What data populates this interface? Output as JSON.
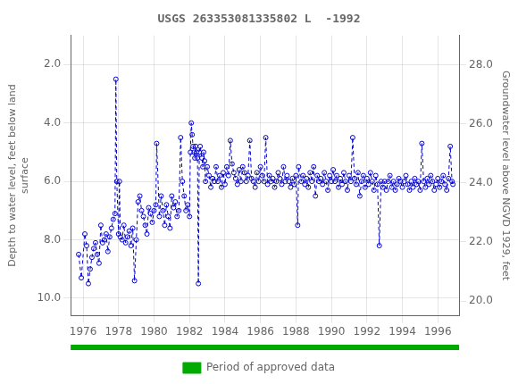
{
  "chart_data": {
    "type": "line",
    "title": "USGS 263353081335802 L  -1992",
    "ylabel": "Depth to water level, feet below land\nsurface",
    "y2label": "Groundwater level above NGVD 1929, feet",
    "x": [
      1975.75,
      1975.9,
      1976.1,
      1976.2,
      1976.3,
      1976.4,
      1976.5,
      1976.6,
      1976.7,
      1976.8,
      1976.9,
      1977.0,
      1977.1,
      1977.2,
      1977.3,
      1977.4,
      1977.5,
      1977.6,
      1977.7,
      1977.8,
      1977.85,
      1977.9,
      1978.0,
      1978.05,
      1978.1,
      1978.2,
      1978.3,
      1978.4,
      1978.5,
      1978.6,
      1978.7,
      1978.8,
      1978.9,
      1979.0,
      1979.1,
      1979.2,
      1979.3,
      1979.4,
      1979.5,
      1979.6,
      1979.7,
      1979.8,
      1979.9,
      1980.0,
      1980.1,
      1980.15,
      1980.3,
      1980.4,
      1980.5,
      1980.6,
      1980.7,
      1980.8,
      1980.9,
      1981.0,
      1981.1,
      1981.2,
      1981.3,
      1981.4,
      1981.5,
      1981.6,
      1981.7,
      1981.8,
      1981.9,
      1982.0,
      1982.05,
      1982.1,
      1982.15,
      1982.2,
      1982.25,
      1982.3,
      1982.35,
      1982.4,
      1982.45,
      1982.5,
      1982.55,
      1982.6,
      1982.7,
      1982.75,
      1982.8,
      1982.85,
      1982.9,
      1983.0,
      1983.1,
      1983.2,
      1983.3,
      1983.4,
      1983.5,
      1983.6,
      1983.7,
      1983.8,
      1983.9,
      1984.0,
      1984.1,
      1984.2,
      1984.3,
      1984.4,
      1984.5,
      1984.6,
      1984.7,
      1984.8,
      1984.9,
      1985.0,
      1985.1,
      1985.2,
      1985.3,
      1985.4,
      1985.5,
      1985.6,
      1985.7,
      1985.8,
      1985.9,
      1986.0,
      1986.1,
      1986.2,
      1986.3,
      1986.4,
      1986.5,
      1986.6,
      1986.7,
      1986.8,
      1986.9,
      1987.0,
      1987.1,
      1987.2,
      1987.3,
      1987.4,
      1987.5,
      1987.6,
      1987.7,
      1987.8,
      1987.9,
      1988.0,
      1988.1,
      1988.15,
      1988.3,
      1988.4,
      1988.5,
      1988.6,
      1988.7,
      1988.8,
      1988.9,
      1989.0,
      1989.1,
      1989.2,
      1989.3,
      1989.4,
      1989.5,
      1989.6,
      1989.7,
      1989.8,
      1989.9,
      1990.0,
      1990.1,
      1990.2,
      1990.3,
      1990.4,
      1990.5,
      1990.6,
      1990.7,
      1990.8,
      1990.9,
      1991.0,
      1991.1,
      1991.2,
      1991.3,
      1991.4,
      1991.5,
      1991.6,
      1991.7,
      1991.8,
      1991.9,
      1992.0,
      1992.1,
      1992.2,
      1992.3,
      1992.4,
      1992.5,
      1992.6,
      1992.7,
      1992.8,
      1992.9,
      1993.0,
      1993.1,
      1993.2,
      1993.3,
      1993.4,
      1993.5,
      1993.6,
      1993.7,
      1993.8,
      1993.9,
      1994.0,
      1994.1,
      1994.2,
      1994.3,
      1994.4,
      1994.5,
      1994.6,
      1994.7,
      1994.8,
      1994.9,
      1995.0,
      1995.1,
      1995.2,
      1995.3,
      1995.4,
      1995.5,
      1995.6,
      1995.7,
      1995.8,
      1995.9,
      1996.0,
      1996.1,
      1996.2,
      1996.3,
      1996.4,
      1996.5,
      1996.6,
      1996.7,
      1996.8,
      1996.85
    ],
    "xlim": [
      1975.3,
      1997.2
    ],
    "xticks": [
      1976,
      1978,
      1980,
      1982,
      1984,
      1986,
      1988,
      1990,
      1992,
      1994,
      1996
    ],
    "ylim": [
      10.6,
      1.0
    ],
    "yticks": [
      {
        "value": 2.0,
        "label": "2.0"
      },
      {
        "value": 4.0,
        "label": "4.0"
      },
      {
        "value": 6.0,
        "label": "6.0"
      },
      {
        "value": 8.0,
        "label": "8.0"
      },
      {
        "value": 10.0,
        "label": "10.0"
      }
    ],
    "y2lim": [
      19.5,
      29.0
    ],
    "y2ticks": [
      {
        "value": 20.0,
        "label": "20.0"
      },
      {
        "value": 22.0,
        "label": "22.0"
      },
      {
        "value": 24.0,
        "label": "24.0"
      },
      {
        "value": 26.0,
        "label": "26.0"
      },
      {
        "value": 28.0,
        "label": "28.0"
      }
    ],
    "grid": true,
    "legend": "bottom",
    "series": [
      {
        "color": "#0000CC",
        "marker": "open_circle",
        "line_style": "dashed",
        "values": [
          8.5,
          9.3,
          7.8,
          8.2,
          9.5,
          9.0,
          8.6,
          8.3,
          8.1,
          8.5,
          8.8,
          7.5,
          8.1,
          8.0,
          7.8,
          8.4,
          7.9,
          7.6,
          7.3,
          7.1,
          2.5,
          6.0,
          7.8,
          6.0,
          7.9,
          8.0,
          7.5,
          8.1,
          7.9,
          7.7,
          8.2,
          7.6,
          9.4,
          8.0,
          6.7,
          6.5,
          7.0,
          7.2,
          7.5,
          7.8,
          6.9,
          7.1,
          7.4,
          7.0,
          6.8,
          4.7,
          7.2,
          6.5,
          7.0,
          7.5,
          6.8,
          7.2,
          7.6,
          6.5,
          6.9,
          6.7,
          7.2,
          7.0,
          4.5,
          6.0,
          6.5,
          7.0,
          6.8,
          7.2,
          5.0,
          4.0,
          4.4,
          4.8,
          5.0,
          5.2,
          4.8,
          5.0,
          5.2,
          9.5,
          5.0,
          4.8,
          5.2,
          5.5,
          5.0,
          5.3,
          6.0,
          5.5,
          5.8,
          6.2,
          5.9,
          6.0,
          5.5,
          6.0,
          5.8,
          6.2,
          5.7,
          6.1,
          5.5,
          5.8,
          4.6,
          5.4,
          5.7,
          5.9,
          6.1,
          5.6,
          6.0,
          5.5,
          5.7,
          6.0,
          5.8,
          4.6,
          5.9,
          6.0,
          6.2,
          5.7,
          6.0,
          5.5,
          5.8,
          6.0,
          4.5,
          6.1,
          5.8,
          6.0,
          5.9,
          6.2,
          6.0,
          5.7,
          5.9,
          6.1,
          5.5,
          6.0,
          5.8,
          6.0,
          6.2,
          5.9,
          6.1,
          5.8,
          7.5,
          5.5,
          6.0,
          5.8,
          6.1,
          5.9,
          6.2,
          5.7,
          6.0,
          5.5,
          6.5,
          5.8,
          6.0,
          5.9,
          6.1,
          5.7,
          6.0,
          6.3,
          5.8,
          6.0,
          5.6,
          6.0,
          5.8,
          6.2,
          5.9,
          6.1,
          5.7,
          6.0,
          6.3,
          5.8,
          6.0,
          4.5,
          5.9,
          6.1,
          5.7,
          6.5,
          6.0,
          5.8,
          6.2,
          5.9,
          6.1,
          5.7,
          6.0,
          6.3,
          5.8,
          6.1,
          8.2,
          6.0,
          6.2,
          6.0,
          6.3,
          6.0,
          5.8,
          6.2,
          6.0,
          6.3,
          6.1,
          5.9,
          6.0,
          6.2,
          6.0,
          5.8,
          6.1,
          6.3,
          6.0,
          6.2,
          5.9,
          6.1,
          6.0,
          6.3,
          4.7,
          6.0,
          6.2,
          5.9,
          6.1,
          5.8,
          6.0,
          6.3,
          6.1,
          5.9,
          6.2,
          6.0,
          5.8,
          6.1,
          6.3,
          5.9,
          4.8,
          6.0,
          6.1
        ]
      },
      {
        "name": "Period of approved data",
        "type": "band",
        "color": "#00aa00"
      }
    ]
  }
}
